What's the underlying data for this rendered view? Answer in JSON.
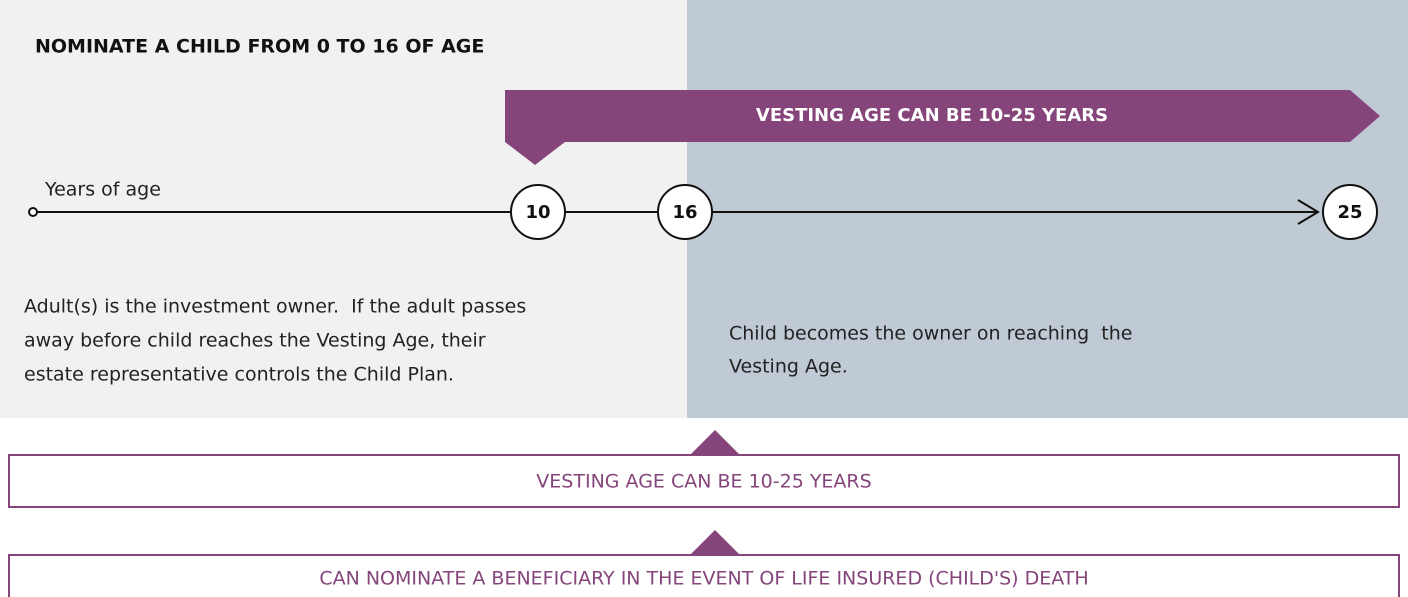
{
  "header": {
    "title": "NOMINATE A CHILD FROM 0 TO 16 OF AGE"
  },
  "banner": {
    "label": "VESTING AGE CAN BE 10-25 YEARS"
  },
  "timeline": {
    "axis_label": "Years of age",
    "markers": [
      "10",
      "16",
      "25"
    ]
  },
  "left_panel": {
    "lines": [
      "Adult(s) is the investment owner.  If the adult passes",
      "away before child reaches the Vesting Age, their",
      "estate representative controls the Child Plan."
    ]
  },
  "right_panel": {
    "lines": [
      "Child becomes the owner on reaching  the",
      "Vesting Age."
    ]
  },
  "boxes": [
    {
      "label": "VESTING AGE CAN BE 10-25 YEARS"
    },
    {
      "label": "CAN NOMINATE A BENEFICIARY IN THE EVENT OF LIFE INSURED (CHILD'S) DEATH"
    }
  ]
}
